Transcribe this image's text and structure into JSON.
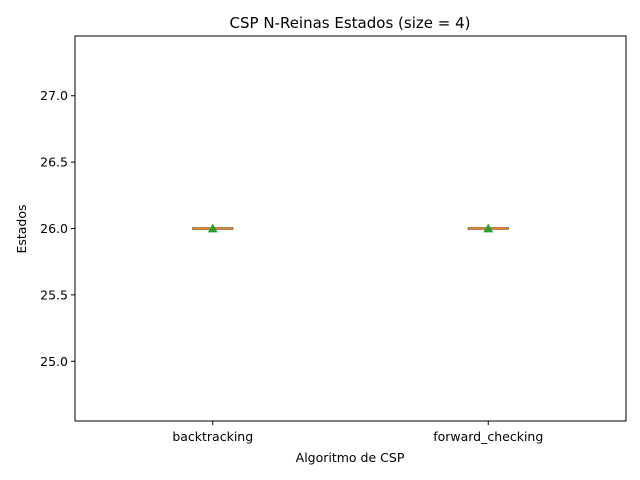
{
  "chart_data": {
    "type": "box",
    "title": "CSP N-Reinas Estados (size = 4)",
    "xlabel": "Algoritmo de CSP",
    "ylabel": "Estados",
    "categories": [
      "backtracking",
      "forward_checking"
    ],
    "boxes": [
      {
        "name": "backtracking",
        "min": 26.0,
        "q1": 26.0,
        "median": 26.0,
        "q3": 26.0,
        "max": 26.0,
        "mean": 26.0
      },
      {
        "name": "forward_checking",
        "min": 26.0,
        "q1": 26.0,
        "median": 26.0,
        "q3": 26.0,
        "max": 26.0,
        "mean": 26.0
      }
    ],
    "ylim": [
      24.55,
      27.45
    ],
    "yticks": [
      25.0,
      25.5,
      26.0,
      26.5,
      27.0
    ],
    "ytick_labels": [
      "25.0",
      "25.5",
      "26.0",
      "26.5",
      "27.0"
    ],
    "grid": false,
    "colors": {
      "box": "#000000",
      "median": "#ff7f0e",
      "mean_marker": "#2ca02c"
    }
  }
}
